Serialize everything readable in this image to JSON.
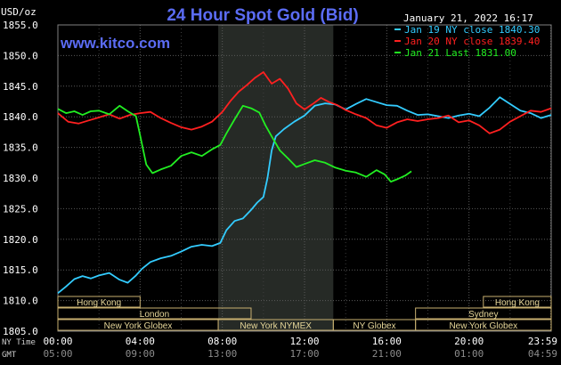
{
  "chart_data": {
    "type": "line",
    "title": "24 Hour Spot Gold (Bid)",
    "ylabel": "USD/oz",
    "source": "www.kitco.com",
    "timestamp": "January 21, 2022 16:17",
    "ylim": [
      1805.0,
      1855.0
    ],
    "y_ticks": [
      "1855.0",
      "1850.0",
      "1845.0",
      "1840.0",
      "1835.0",
      "1830.0",
      "1825.0",
      "1820.0",
      "1815.0",
      "1810.0",
      "1805.0"
    ],
    "xlim_hours": [
      0,
      24
    ],
    "x_tick_hours": [
      0,
      4,
      8,
      12,
      16,
      20,
      23.98
    ],
    "x_labels_ny": [
      "00:00",
      "04:00",
      "08:00",
      "12:00",
      "16:00",
      "20:00",
      "23:59"
    ],
    "x_labels_gmt": [
      "05:00",
      "09:00",
      "13:00",
      "17:00",
      "21:00",
      "01:00",
      "04:59"
    ],
    "row_label_ny": "NY Time",
    "row_label_gmt": "GMT",
    "shaded_period_hours": [
      7.8,
      13.4
    ],
    "grid": true,
    "legend_position": "top-right",
    "series": [
      {
        "name": "Jan 19 NY close 1840.30",
        "color": "#33ccff",
        "points": [
          [
            0.0,
            1811.2
          ],
          [
            0.4,
            1812.3
          ],
          [
            0.8,
            1813.5
          ],
          [
            1.2,
            1814.0
          ],
          [
            1.6,
            1813.6
          ],
          [
            2.0,
            1814.1
          ],
          [
            2.5,
            1814.5
          ],
          [
            3.0,
            1813.4
          ],
          [
            3.4,
            1812.9
          ],
          [
            3.8,
            1814.1
          ],
          [
            4.1,
            1815.2
          ],
          [
            4.5,
            1816.3
          ],
          [
            5.0,
            1816.9
          ],
          [
            5.5,
            1817.3
          ],
          [
            6.0,
            1818.0
          ],
          [
            6.5,
            1818.8
          ],
          [
            7.0,
            1819.1
          ],
          [
            7.5,
            1818.9
          ],
          [
            7.9,
            1819.4
          ],
          [
            8.2,
            1821.5
          ],
          [
            8.6,
            1823.0
          ],
          [
            9.0,
            1823.4
          ],
          [
            9.4,
            1824.8
          ],
          [
            9.7,
            1826.0
          ],
          [
            10.0,
            1826.9
          ],
          [
            10.2,
            1830.0
          ],
          [
            10.4,
            1834.5
          ],
          [
            10.6,
            1836.8
          ],
          [
            11.0,
            1838.0
          ],
          [
            11.5,
            1839.2
          ],
          [
            12.0,
            1840.2
          ],
          [
            12.5,
            1841.8
          ],
          [
            13.0,
            1842.2
          ],
          [
            13.5,
            1842.0
          ],
          [
            14.0,
            1841.2
          ],
          [
            14.5,
            1842.1
          ],
          [
            15.0,
            1842.9
          ],
          [
            15.5,
            1842.4
          ],
          [
            16.0,
            1841.9
          ],
          [
            16.5,
            1841.8
          ],
          [
            17.0,
            1841.0
          ],
          [
            17.5,
            1840.3
          ],
          [
            18.0,
            1840.4
          ],
          [
            18.5,
            1840.1
          ],
          [
            19.0,
            1839.8
          ],
          [
            19.5,
            1840.2
          ],
          [
            20.0,
            1840.5
          ],
          [
            20.5,
            1840.1
          ],
          [
            21.0,
            1841.5
          ],
          [
            21.5,
            1843.2
          ],
          [
            22.0,
            1842.1
          ],
          [
            22.5,
            1841.0
          ],
          [
            23.0,
            1840.6
          ],
          [
            23.5,
            1839.8
          ],
          [
            24.0,
            1840.3
          ]
        ]
      },
      {
        "name": "Jan 20 NY close 1839.40",
        "color": "#ff2020",
        "points": [
          [
            0.0,
            1840.6
          ],
          [
            0.5,
            1839.2
          ],
          [
            1.0,
            1838.9
          ],
          [
            1.5,
            1839.4
          ],
          [
            2.0,
            1839.9
          ],
          [
            2.5,
            1840.4
          ],
          [
            3.0,
            1839.7
          ],
          [
            3.5,
            1840.3
          ],
          [
            4.0,
            1840.6
          ],
          [
            4.5,
            1840.8
          ],
          [
            5.0,
            1839.8
          ],
          [
            5.5,
            1839.0
          ],
          [
            6.0,
            1838.3
          ],
          [
            6.5,
            1837.9
          ],
          [
            7.0,
            1838.4
          ],
          [
            7.5,
            1839.2
          ],
          [
            8.0,
            1840.8
          ],
          [
            8.4,
            1842.6
          ],
          [
            8.8,
            1844.1
          ],
          [
            9.2,
            1845.2
          ],
          [
            9.6,
            1846.4
          ],
          [
            10.0,
            1847.3
          ],
          [
            10.4,
            1845.4
          ],
          [
            10.8,
            1846.2
          ],
          [
            11.2,
            1844.6
          ],
          [
            11.6,
            1842.2
          ],
          [
            12.0,
            1841.2
          ],
          [
            12.4,
            1842.1
          ],
          [
            12.8,
            1843.1
          ],
          [
            13.2,
            1842.4
          ],
          [
            13.6,
            1841.9
          ],
          [
            14.0,
            1841.1
          ],
          [
            14.5,
            1840.4
          ],
          [
            15.0,
            1839.8
          ],
          [
            15.5,
            1838.6
          ],
          [
            16.0,
            1838.2
          ],
          [
            16.5,
            1839.1
          ],
          [
            17.0,
            1839.6
          ],
          [
            17.5,
            1839.3
          ],
          [
            18.0,
            1839.6
          ],
          [
            18.5,
            1839.8
          ],
          [
            19.0,
            1840.2
          ],
          [
            19.5,
            1839.1
          ],
          [
            20.0,
            1839.4
          ],
          [
            20.5,
            1838.6
          ],
          [
            21.0,
            1837.3
          ],
          [
            21.5,
            1837.9
          ],
          [
            22.0,
            1839.2
          ],
          [
            22.5,
            1840.1
          ],
          [
            23.0,
            1841.0
          ],
          [
            23.5,
            1840.8
          ],
          [
            24.0,
            1841.4
          ]
        ]
      },
      {
        "name": "Jan 21 Last 1831.00",
        "color": "#22ee22",
        "points": [
          [
            0.0,
            1841.3
          ],
          [
            0.4,
            1840.6
          ],
          [
            0.8,
            1840.9
          ],
          [
            1.2,
            1840.3
          ],
          [
            1.6,
            1840.9
          ],
          [
            2.0,
            1841.0
          ],
          [
            2.5,
            1840.4
          ],
          [
            3.0,
            1841.8
          ],
          [
            3.4,
            1840.9
          ],
          [
            3.8,
            1840.1
          ],
          [
            4.0,
            1837.0
          ],
          [
            4.3,
            1832.2
          ],
          [
            4.6,
            1830.8
          ],
          [
            5.0,
            1831.4
          ],
          [
            5.5,
            1832.0
          ],
          [
            6.0,
            1833.6
          ],
          [
            6.5,
            1834.2
          ],
          [
            7.0,
            1833.6
          ],
          [
            7.5,
            1834.7
          ],
          [
            7.9,
            1835.4
          ],
          [
            8.2,
            1837.3
          ],
          [
            8.6,
            1839.6
          ],
          [
            9.0,
            1841.8
          ],
          [
            9.4,
            1841.4
          ],
          [
            9.8,
            1840.7
          ],
          [
            10.1,
            1838.6
          ],
          [
            10.4,
            1836.8
          ],
          [
            10.8,
            1834.5
          ],
          [
            11.2,
            1833.2
          ],
          [
            11.6,
            1831.8
          ],
          [
            12.0,
            1832.3
          ],
          [
            12.5,
            1832.9
          ],
          [
            13.0,
            1832.5
          ],
          [
            13.5,
            1831.7
          ],
          [
            14.0,
            1831.2
          ],
          [
            14.5,
            1830.9
          ],
          [
            15.0,
            1830.2
          ],
          [
            15.5,
            1831.3
          ],
          [
            15.9,
            1830.6
          ],
          [
            16.2,
            1829.4
          ],
          [
            16.5,
            1829.8
          ],
          [
            16.9,
            1830.4
          ],
          [
            17.2,
            1831.1
          ]
        ]
      }
    ],
    "session_rows": [
      [
        {
          "label": "Hong Kong",
          "start": 0.0,
          "end": 4.0
        },
        {
          "label": "Hong Kong",
          "start": 20.7,
          "end": 24.0
        }
      ],
      [
        {
          "label": "London",
          "start": 0.0,
          "end": 9.4
        },
        {
          "label": "Sydney",
          "start": 17.4,
          "end": 24.0
        }
      ],
      [
        {
          "label": "New York Globex",
          "start": 0.0,
          "end": 7.8
        },
        {
          "label": "New York NYMEX",
          "start": 7.8,
          "end": 13.4
        },
        {
          "label": "NY Globex",
          "start": 13.4,
          "end": 17.4
        },
        {
          "label": "New York Globex",
          "start": 17.4,
          "end": 24.0
        }
      ]
    ]
  }
}
